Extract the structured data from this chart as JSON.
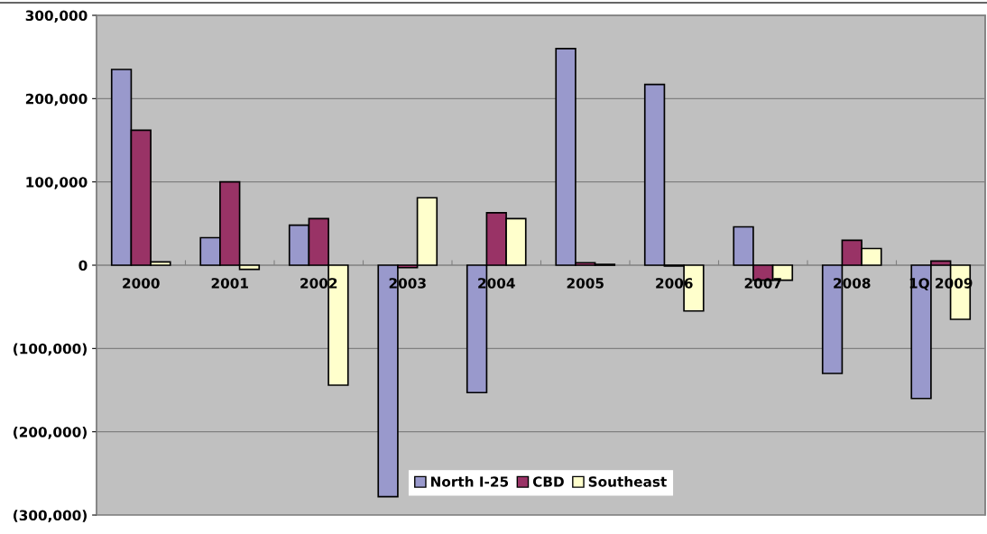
{
  "chart_data": {
    "type": "bar",
    "categories": [
      "2000",
      "2001",
      "2002",
      "2003",
      "2004",
      "2005",
      "2006",
      "2007",
      "2008",
      "1Q 2009"
    ],
    "series": [
      {
        "name": "North I-25",
        "color": "#9999cc",
        "values": [
          235000,
          33000,
          48000,
          -278000,
          -153000,
          260000,
          217000,
          46000,
          -130000,
          -160000
        ]
      },
      {
        "name": "CBD",
        "color": "#993366",
        "values": [
          162000,
          100000,
          56000,
          -3000,
          63000,
          3000,
          -1000,
          -18000,
          30000,
          5000
        ]
      },
      {
        "name": "Southeast",
        "color": "#ffffcc",
        "values": [
          4000,
          -5000,
          -144000,
          81000,
          56000,
          1000,
          -55000,
          -18000,
          20000,
          -65000
        ]
      }
    ],
    "ylim": [
      -300000,
      300000
    ],
    "yticks": [
      {
        "value": -300000,
        "label": "(300,000)"
      },
      {
        "value": -200000,
        "label": "(200,000)"
      },
      {
        "value": -100000,
        "label": "(100,000)"
      },
      0,
      {
        "value": 100000,
        "label": "100,000"
      },
      {
        "value": 200000,
        "label": "200,000"
      },
      {
        "value": 300000,
        "label": "300,000"
      }
    ],
    "grid": "y",
    "legend": "bottom"
  }
}
